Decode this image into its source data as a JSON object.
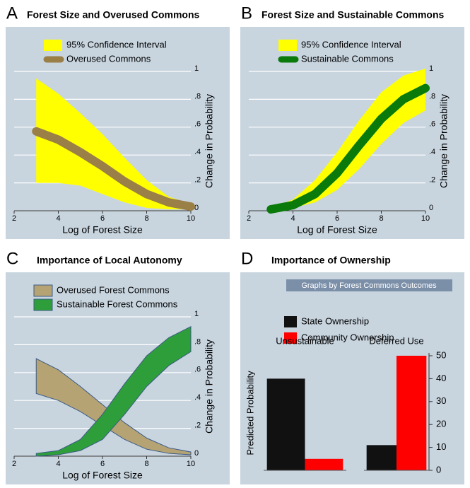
{
  "chart_data": [
    {
      "panel": "A",
      "type": "line",
      "title": "Forest Size and Overused Commons",
      "x_label": "Log of Forest Size",
      "y_label": "Change in Probability",
      "x": [
        3,
        4,
        5,
        6,
        7,
        8,
        9,
        10
      ],
      "xlim": [
        2,
        10
      ],
      "xticks": [
        2,
        4,
        6,
        8,
        10
      ],
      "ylim": [
        0,
        1
      ],
      "yticks": [
        0,
        {
          "value": 0.2,
          "label": ".2"
        },
        {
          "value": 0.4,
          "label": ".4"
        },
        {
          "value": 0.6,
          "label": ".6"
        },
        {
          "value": 0.8,
          "label": ".8"
        },
        1
      ],
      "grid": true,
      "series": [
        {
          "name": "95% Confidence Interval",
          "color": "#ffff00",
          "lower": [
            0.2,
            0.2,
            0.18,
            0.12,
            0.06,
            0.02,
            0.01,
            0.01
          ],
          "upper": [
            0.95,
            0.84,
            0.7,
            0.55,
            0.38,
            0.22,
            0.1,
            0.05
          ]
        },
        {
          "name": "Overused Commons",
          "color": "#9a7f46",
          "values": [
            0.57,
            0.51,
            0.42,
            0.32,
            0.21,
            0.12,
            0.06,
            0.03
          ]
        }
      ]
    },
    {
      "panel": "B",
      "type": "line",
      "title": "Forest Size and Sustainable Commons",
      "x_label": "Log of Forest Size",
      "y_label": "Change in Probability",
      "x": [
        3,
        4,
        5,
        6,
        7,
        8,
        9,
        10
      ],
      "xlim": [
        2,
        10
      ],
      "xticks": [
        2,
        4,
        6,
        8,
        10
      ],
      "ylim": [
        0,
        1
      ],
      "yticks": [
        0,
        {
          "value": 0.2,
          "label": ".2"
        },
        {
          "value": 0.4,
          "label": ".4"
        },
        {
          "value": 0.6,
          "label": ".6"
        },
        {
          "value": 0.8,
          "label": ".8"
        },
        1
      ],
      "grid": true,
      "series": [
        {
          "name": "95% Confidence Interval",
          "color": "#ffff00",
          "lower": [
            0,
            0.02,
            0.06,
            0.15,
            0.3,
            0.48,
            0.63,
            0.72
          ],
          "upper": [
            0.02,
            0.08,
            0.22,
            0.42,
            0.65,
            0.85,
            0.97,
            1.02
          ]
        },
        {
          "name": "Sustainable Commons",
          "color": "#0a7a0a",
          "values": [
            0.01,
            0.04,
            0.12,
            0.27,
            0.47,
            0.66,
            0.8,
            0.88
          ]
        }
      ]
    },
    {
      "panel": "C",
      "type": "area",
      "title": "Importance of Local Autonomy",
      "x_label": "Log of Forest Size",
      "y_label": "Change in Probability",
      "x": [
        3,
        4,
        5,
        6,
        7,
        8,
        9,
        10
      ],
      "xlim": [
        2,
        10
      ],
      "xticks": [
        2,
        4,
        6,
        8,
        10
      ],
      "ylim": [
        0,
        1
      ],
      "yticks": [
        0,
        {
          "value": 0.2,
          "label": ".2"
        },
        {
          "value": 0.4,
          "label": ".4"
        },
        {
          "value": 0.6,
          "label": ".6"
        },
        {
          "value": 0.8,
          "label": ".8"
        },
        1
      ],
      "grid": true,
      "series": [
        {
          "name": "Overused Forest Commons",
          "color": "#b5a373",
          "lower": [
            0.45,
            0.4,
            0.32,
            0.22,
            0.12,
            0.05,
            0.02,
            0.01
          ],
          "upper": [
            0.7,
            0.62,
            0.5,
            0.37,
            0.24,
            0.13,
            0.06,
            0.03
          ]
        },
        {
          "name": "Sustainable Forest Commons",
          "color": "#2e9e3a",
          "lower": [
            0,
            0.01,
            0.04,
            0.12,
            0.3,
            0.5,
            0.65,
            0.75
          ],
          "upper": [
            0.02,
            0.04,
            0.12,
            0.3,
            0.52,
            0.72,
            0.85,
            0.93
          ]
        }
      ]
    },
    {
      "panel": "D",
      "type": "bar",
      "title": "Importance of Ownership",
      "facet_label": "Graphs by Forest Commons Outcomes",
      "y_label": "Predicted Probability",
      "categories": [
        "Unsustainable",
        "Deferred Use"
      ],
      "ylim": [
        0,
        50
      ],
      "yticks": [
        0,
        10,
        20,
        30,
        40,
        50
      ],
      "series": [
        {
          "name": "State Ownership",
          "color": "#111111",
          "values": [
            40,
            11
          ]
        },
        {
          "name": "Community Ownership",
          "color": "#ff0000",
          "values": [
            5,
            50
          ]
        }
      ]
    }
  ]
}
